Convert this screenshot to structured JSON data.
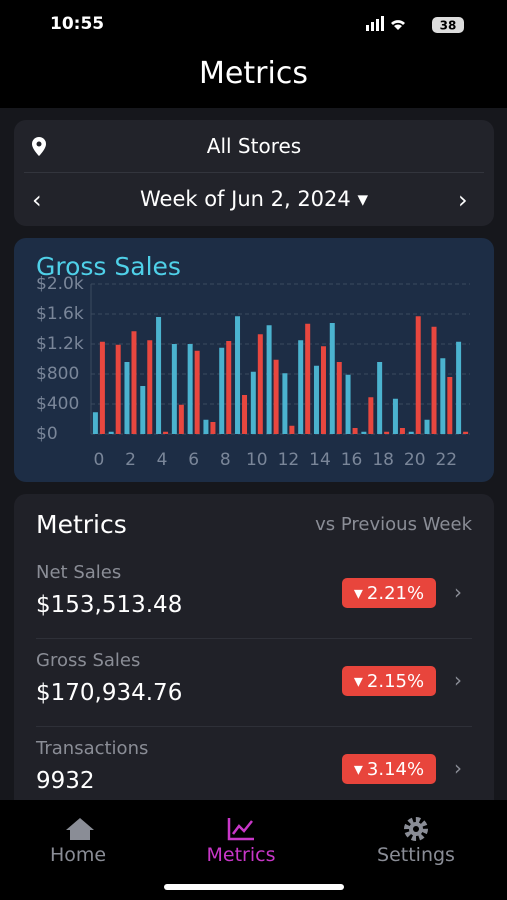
{
  "status_bar": {
    "time": "10:55",
    "battery": "38"
  },
  "header": {
    "title": "Metrics"
  },
  "filters": {
    "store": "All Stores",
    "week": "Week of Jun 2, 2024"
  },
  "chart_data": {
    "type": "bar",
    "title": "Gross Sales",
    "x": [
      0,
      1,
      2,
      3,
      4,
      5,
      6,
      7,
      8,
      9,
      10,
      11,
      12,
      13,
      14,
      15,
      16,
      17,
      18,
      19,
      20,
      21,
      22,
      23
    ],
    "xlim": [
      -0.5,
      23.5
    ],
    "xticks": [
      0,
      2,
      4,
      6,
      8,
      10,
      12,
      14,
      16,
      18,
      20,
      22
    ],
    "series": [
      {
        "color": "#4bb3cf",
        "values": [
          290,
          30,
          960,
          640,
          1560,
          1200,
          1200,
          190,
          1150,
          1570,
          830,
          1450,
          810,
          1250,
          910,
          1480,
          790,
          30,
          960,
          470,
          30,
          190,
          1010,
          1230
        ]
      },
      {
        "color": "#e8473f",
        "values": [
          1230,
          1190,
          1370,
          1250,
          30,
          390,
          1110,
          160,
          1240,
          520,
          1330,
          990,
          110,
          1470,
          1170,
          960,
          80,
          490,
          30,
          80,
          1570,
          1430,
          760,
          30
        ]
      }
    ],
    "ylim": [
      0,
      2000
    ],
    "yticks": [
      {
        "value": 0,
        "label": "$0"
      },
      {
        "value": 400,
        "label": "$400"
      },
      {
        "value": 800,
        "label": "$800"
      },
      {
        "value": 1200,
        "label": "$1.2k"
      },
      {
        "value": 1600,
        "label": "$1.6k"
      },
      {
        "value": 2000,
        "label": "$2.0k"
      }
    ],
    "grid": true
  },
  "metrics": {
    "title": "Metrics",
    "comparison": "vs Previous Week",
    "items": [
      {
        "label": "Net Sales",
        "value": "$153,513.48",
        "change": "2.21%"
      },
      {
        "label": "Gross Sales",
        "value": "$170,934.76",
        "change": "2.15%"
      },
      {
        "label": "Transactions",
        "value": "9932",
        "change": "3.14%"
      }
    ]
  },
  "tab_bar": {
    "items": [
      "Home",
      "Metrics",
      "Settings"
    ]
  }
}
